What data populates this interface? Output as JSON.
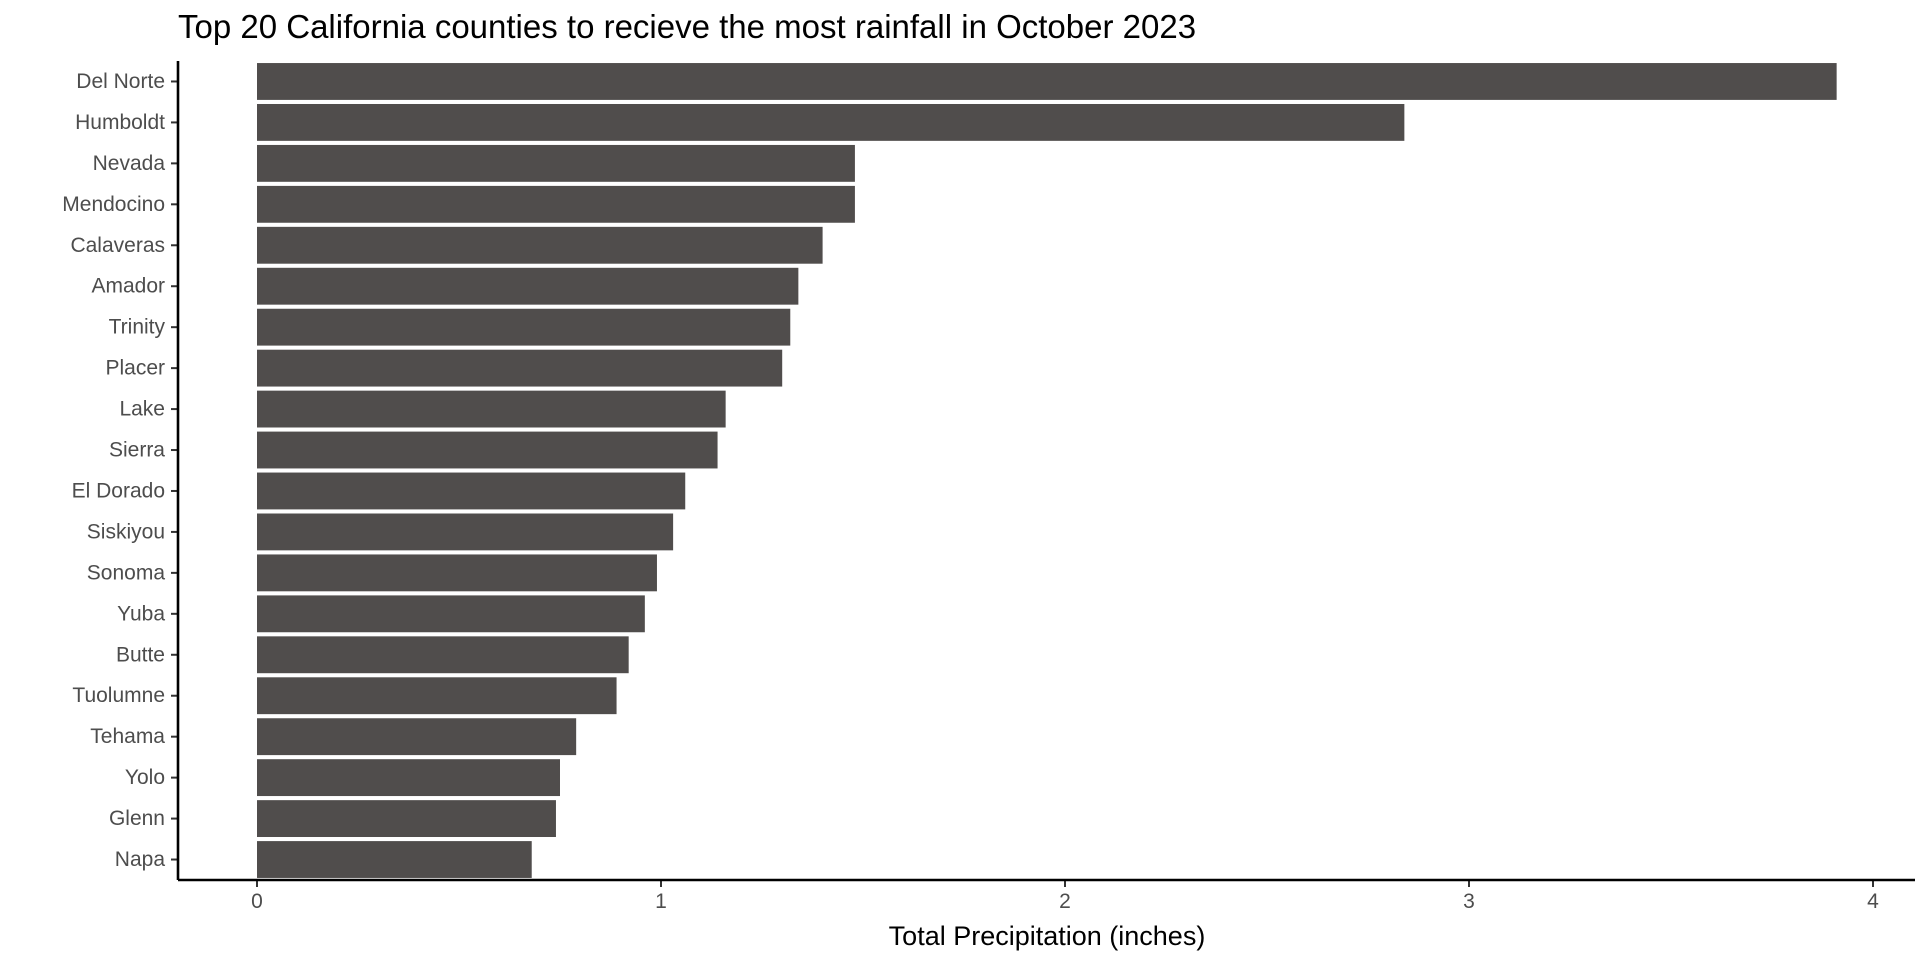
{
  "chart_data": {
    "type": "bar",
    "orientation": "horizontal",
    "title": "Top 20 California counties to recieve the most rainfall in October 2023",
    "xlabel": "Total Precipitation (inches)",
    "ylabel": "",
    "xlim": [
      0,
      4
    ],
    "x_ticks": [
      "0",
      "1",
      "2",
      "3",
      "4"
    ],
    "grid": false,
    "legend": "none",
    "bar_color": "#504d4c",
    "categories": [
      "Del Norte",
      "Humboldt",
      "Nevada",
      "Mendocino",
      "Calaveras",
      "Amador",
      "Trinity",
      "Placer",
      "Lake",
      "Sierra",
      "El Dorado",
      "Siskiyou",
      "Sonoma",
      "Yuba",
      "Butte",
      "Tuolumne",
      "Tehama",
      "Yolo",
      "Glenn",
      "Napa"
    ],
    "values": [
      3.91,
      2.84,
      1.48,
      1.48,
      1.4,
      1.34,
      1.32,
      1.3,
      1.16,
      1.14,
      1.06,
      1.03,
      0.99,
      0.96,
      0.92,
      0.89,
      0.79,
      0.75,
      0.74,
      0.68
    ]
  }
}
